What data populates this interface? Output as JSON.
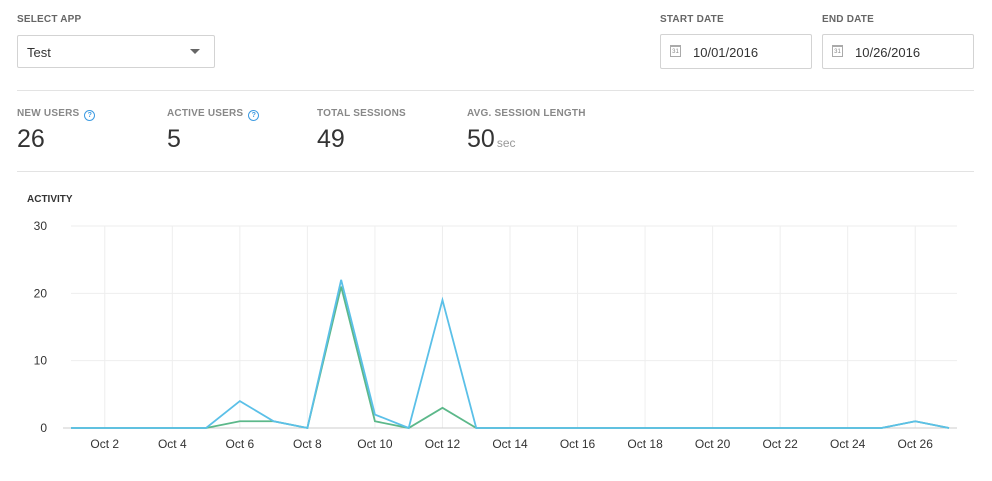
{
  "select_app": {
    "label": "SELECT APP",
    "value": "Test"
  },
  "start_date": {
    "label": "START DATE",
    "value": "10/01/2016",
    "icon": "calendar-icon",
    "icon_text": "31"
  },
  "end_date": {
    "label": "END DATE",
    "value": "10/26/2016",
    "icon": "calendar-icon",
    "icon_text": "31"
  },
  "stats": {
    "new_users": {
      "label": "NEW USERS",
      "value": "26",
      "help": "?"
    },
    "active_users": {
      "label": "ACTIVE USERS",
      "value": "5",
      "help": "?"
    },
    "total_sessions": {
      "label": "TOTAL SESSIONS",
      "value": "49"
    },
    "avg_session_length": {
      "label": "AVG. SESSION LENGTH",
      "value": "50",
      "unit": "sec"
    }
  },
  "colors": {
    "accent": "#3d9be2",
    "series_blue": "#5bc0e8",
    "series_green": "#5cb88a",
    "grid": "#eeeeee",
    "axis": "#cccccc"
  },
  "chart_data": {
    "type": "line",
    "title": "ACTIVITY",
    "x": [
      "Oct 1",
      "Oct 2",
      "Oct 3",
      "Oct 4",
      "Oct 5",
      "Oct 6",
      "Oct 7",
      "Oct 8",
      "Oct 9",
      "Oct 10",
      "Oct 11",
      "Oct 12",
      "Oct 13",
      "Oct 14",
      "Oct 15",
      "Oct 16",
      "Oct 17",
      "Oct 18",
      "Oct 19",
      "Oct 20",
      "Oct 21",
      "Oct 22",
      "Oct 23",
      "Oct 24",
      "Oct 25",
      "Oct 26",
      "Oct 27"
    ],
    "x_tick_labels": [
      "Oct 2",
      "Oct 4",
      "Oct 6",
      "Oct 8",
      "Oct 10",
      "Oct 12",
      "Oct 14",
      "Oct 16",
      "Oct 18",
      "Oct 20",
      "Oct 22",
      "Oct 24",
      "Oct 26"
    ],
    "y_tick_labels": [
      "0",
      "10",
      "20",
      "30"
    ],
    "ylim": [
      0,
      30
    ],
    "grid": true,
    "legend": "none",
    "series": [
      {
        "color": "#5cb88a",
        "values": [
          0,
          0,
          0,
          0,
          0,
          1,
          1,
          0,
          21,
          1,
          0,
          3,
          0,
          0,
          0,
          0,
          0,
          0,
          0,
          0,
          0,
          0,
          0,
          0,
          0,
          1,
          0
        ]
      },
      {
        "color": "#5bc0e8",
        "values": [
          0,
          0,
          0,
          0,
          0,
          4,
          1,
          0,
          22,
          2,
          0,
          19,
          0,
          0,
          0,
          0,
          0,
          0,
          0,
          0,
          0,
          0,
          0,
          0,
          0,
          1,
          0
        ]
      }
    ]
  }
}
